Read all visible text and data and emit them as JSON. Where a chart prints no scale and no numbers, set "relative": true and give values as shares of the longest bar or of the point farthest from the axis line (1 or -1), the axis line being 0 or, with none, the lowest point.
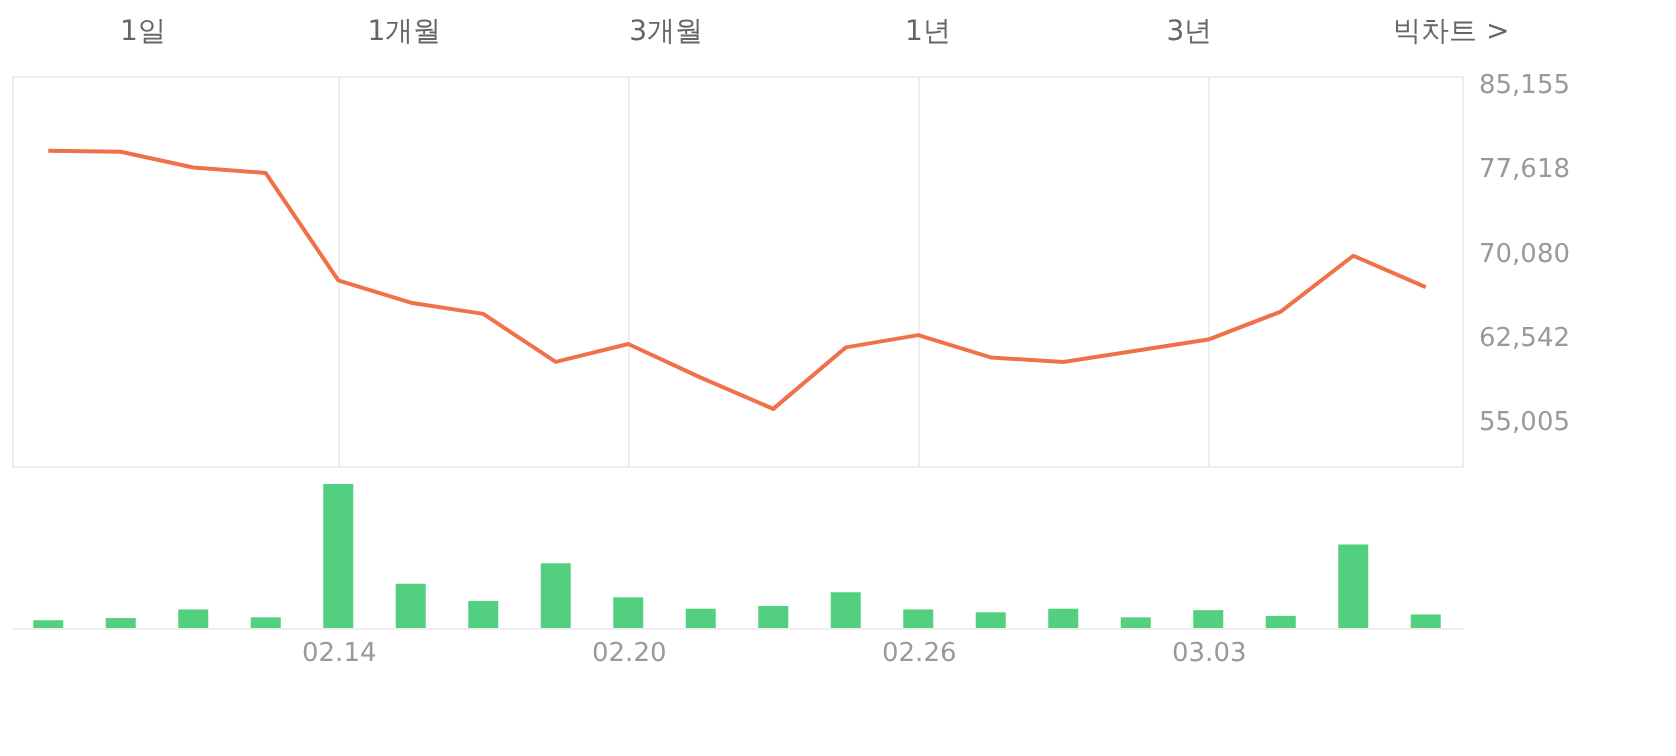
{
  "chart_data": [
    {
      "type": "line",
      "annotations": [
        "1일",
        "1개월",
        "3개월",
        "1년",
        "3년",
        "빅차트 >"
      ],
      "categories": [
        null,
        null,
        null,
        null,
        "02.14",
        null,
        null,
        null,
        "02.20",
        null,
        null,
        null,
        "02.26",
        null,
        null,
        null,
        "03.03",
        null,
        null,
        null
      ],
      "series": [
        {
          "color": "#f0704a",
          "values": [
            79200,
            79100,
            77700,
            77200,
            67600,
            65600,
            64600,
            60300,
            61900,
            58900,
            56100,
            61600,
            62700,
            60700,
            60300,
            61300,
            62300,
            64800,
            69800,
            67000
          ]
        }
      ],
      "ylim": [
        50990,
        85880
      ],
      "yticks": [
        {
          "value": 55005,
          "label": "55,005"
        },
        {
          "value": 62542,
          "label": "62,542"
        },
        {
          "value": 70080,
          "label": "70,080"
        },
        {
          "value": 77618,
          "label": "77,618"
        },
        {
          "value": 85155,
          "label": "85,155"
        }
      ],
      "grid": "x",
      "tick_labels": "y",
      "marker": "none",
      "line_style": "solid"
    },
    {
      "type": "bar",
      "relative": true,
      "categories": [
        null,
        null,
        null,
        null,
        "02.14",
        null,
        null,
        null,
        "02.20",
        null,
        null,
        null,
        "02.26",
        null,
        null,
        null,
        "03.03",
        null,
        null,
        null
      ],
      "series": [
        {
          "color": "#52cf7f",
          "values": [
            0.054,
            0.069,
            0.129,
            0.074,
            1,
            0.307,
            0.188,
            0.45,
            0.213,
            0.134,
            0.153,
            0.248,
            0.129,
            0.109,
            0.134,
            0.074,
            0.124,
            0.084,
            0.579,
            0.094
          ]
        }
      ],
      "tick_labels": "x"
    }
  ]
}
